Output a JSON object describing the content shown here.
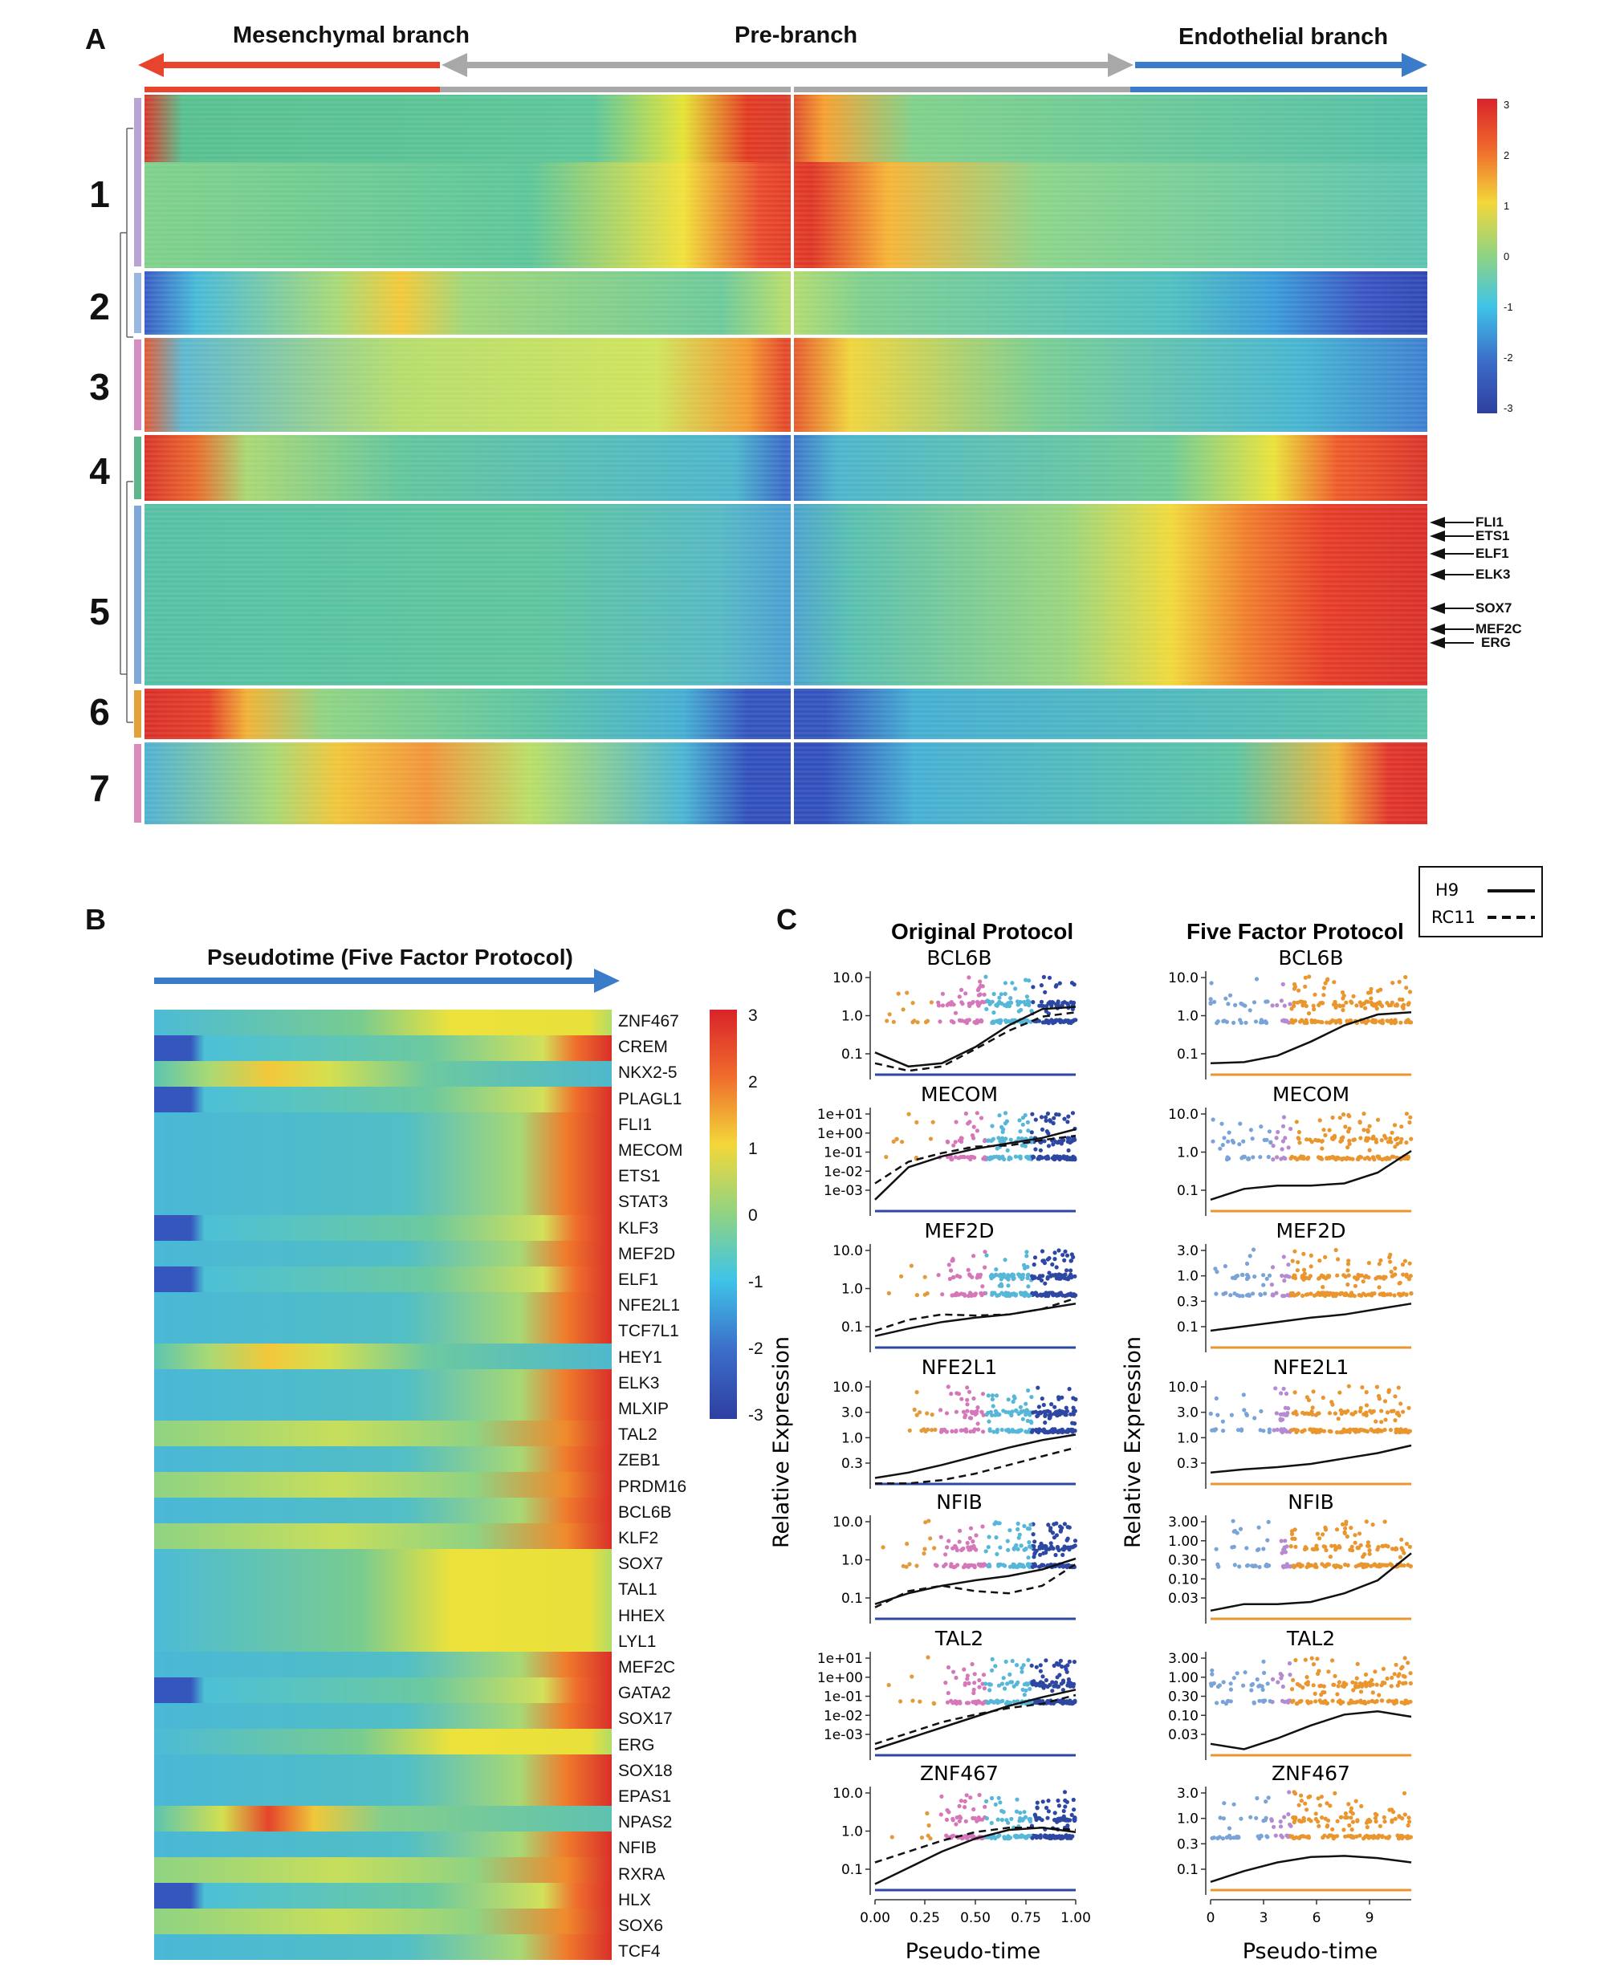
{
  "panels": [
    "A",
    "B",
    "C"
  ],
  "panel_a": {
    "branches": {
      "left": "Mesenchymal branch",
      "middle": "Pre-branch",
      "right": "Endothelial branch"
    },
    "colors": {
      "left": "#e8432c",
      "middle": "#a8a8a8",
      "right": "#3a7cc9"
    },
    "clusters": [
      "1",
      "2",
      "3",
      "4",
      "5",
      "6",
      "7"
    ],
    "markers": [
      "FLI1",
      "ETS1",
      "ELF1",
      "ELK3",
      "SOX7",
      "MEF2C",
      "ERG"
    ],
    "colorbar_ticks": [
      "3",
      "2",
      "1",
      "0",
      "-1",
      "-2",
      "-3"
    ]
  },
  "panel_b": {
    "title": "Pseudotime (Five Factor Protocol)",
    "genes": [
      "ZNF467",
      "CREM",
      "NKX2-5",
      "PLAGL1",
      "FLI1",
      "MECOM",
      "ETS1",
      "STAT3",
      "KLF3",
      "MEF2D",
      "ELF1",
      "NFE2L1",
      "TCF7L1",
      "HEY1",
      "ELK3",
      "MLXIP",
      "TAL2",
      "ZEB1",
      "PRDM16",
      "BCL6B",
      "KLF2",
      "SOX7",
      "TAL1",
      "HHEX",
      "LYL1",
      "MEF2C",
      "GATA2",
      "SOX17",
      "ERG",
      "SOX18",
      "EPAS1",
      "NPAS2",
      "NFIB",
      "RXRA",
      "HLX",
      "SOX6",
      "TCF4"
    ],
    "colorbar_ticks": [
      "3",
      "2",
      "1",
      "0",
      "-1",
      "-2",
      "-3"
    ]
  },
  "panel_c": {
    "legend": {
      "solid": "H9",
      "dashed": "RC11"
    },
    "protocols": [
      "Original Protocol",
      "Five Factor Protocol"
    ],
    "ylabel": "Relative Expression",
    "xlabel": "Pseudo-time",
    "xticks_left": [
      "0.00",
      "0.25",
      "0.50",
      "0.75",
      "1.00"
    ],
    "xticks_right": [
      "0",
      "3",
      "6",
      "9"
    ],
    "genes": [
      "BCL6B",
      "MECOM",
      "MEF2D",
      "NFE2L1",
      "NFIB",
      "TAL2",
      "ZNF467"
    ],
    "yticks_left": [
      [
        "10.0",
        "1.0",
        "0.1"
      ],
      [
        "1e+01",
        "1e+00",
        "1e-01",
        "1e-02",
        "1e-03"
      ],
      [
        "10.0",
        "1.0",
        "0.1"
      ],
      [
        "10.0",
        "3.0",
        "1.0",
        "0.3"
      ],
      [
        "10.0",
        "1.0",
        "0.1"
      ],
      [
        "1e+01",
        "1e+00",
        "1e-01",
        "1e-02",
        "1e-03"
      ],
      [
        "10.0",
        "1.0",
        "0.1"
      ]
    ],
    "yticks_right": [
      [
        "10.0",
        "1.0",
        "0.1"
      ],
      [
        "10.0",
        "1.0",
        "0.1"
      ],
      [
        "3.0",
        "1.0",
        "0.3",
        "0.1"
      ],
      [
        "10.0",
        "3.0",
        "1.0",
        "0.3"
      ],
      [
        "3.00",
        "1.00",
        "0.30",
        "0.10",
        "0.03"
      ],
      [
        "3.00",
        "1.00",
        "0.30",
        "0.10",
        "0.03"
      ],
      [
        "3.0",
        "1.0",
        "0.3",
        "0.1"
      ]
    ]
  }
}
